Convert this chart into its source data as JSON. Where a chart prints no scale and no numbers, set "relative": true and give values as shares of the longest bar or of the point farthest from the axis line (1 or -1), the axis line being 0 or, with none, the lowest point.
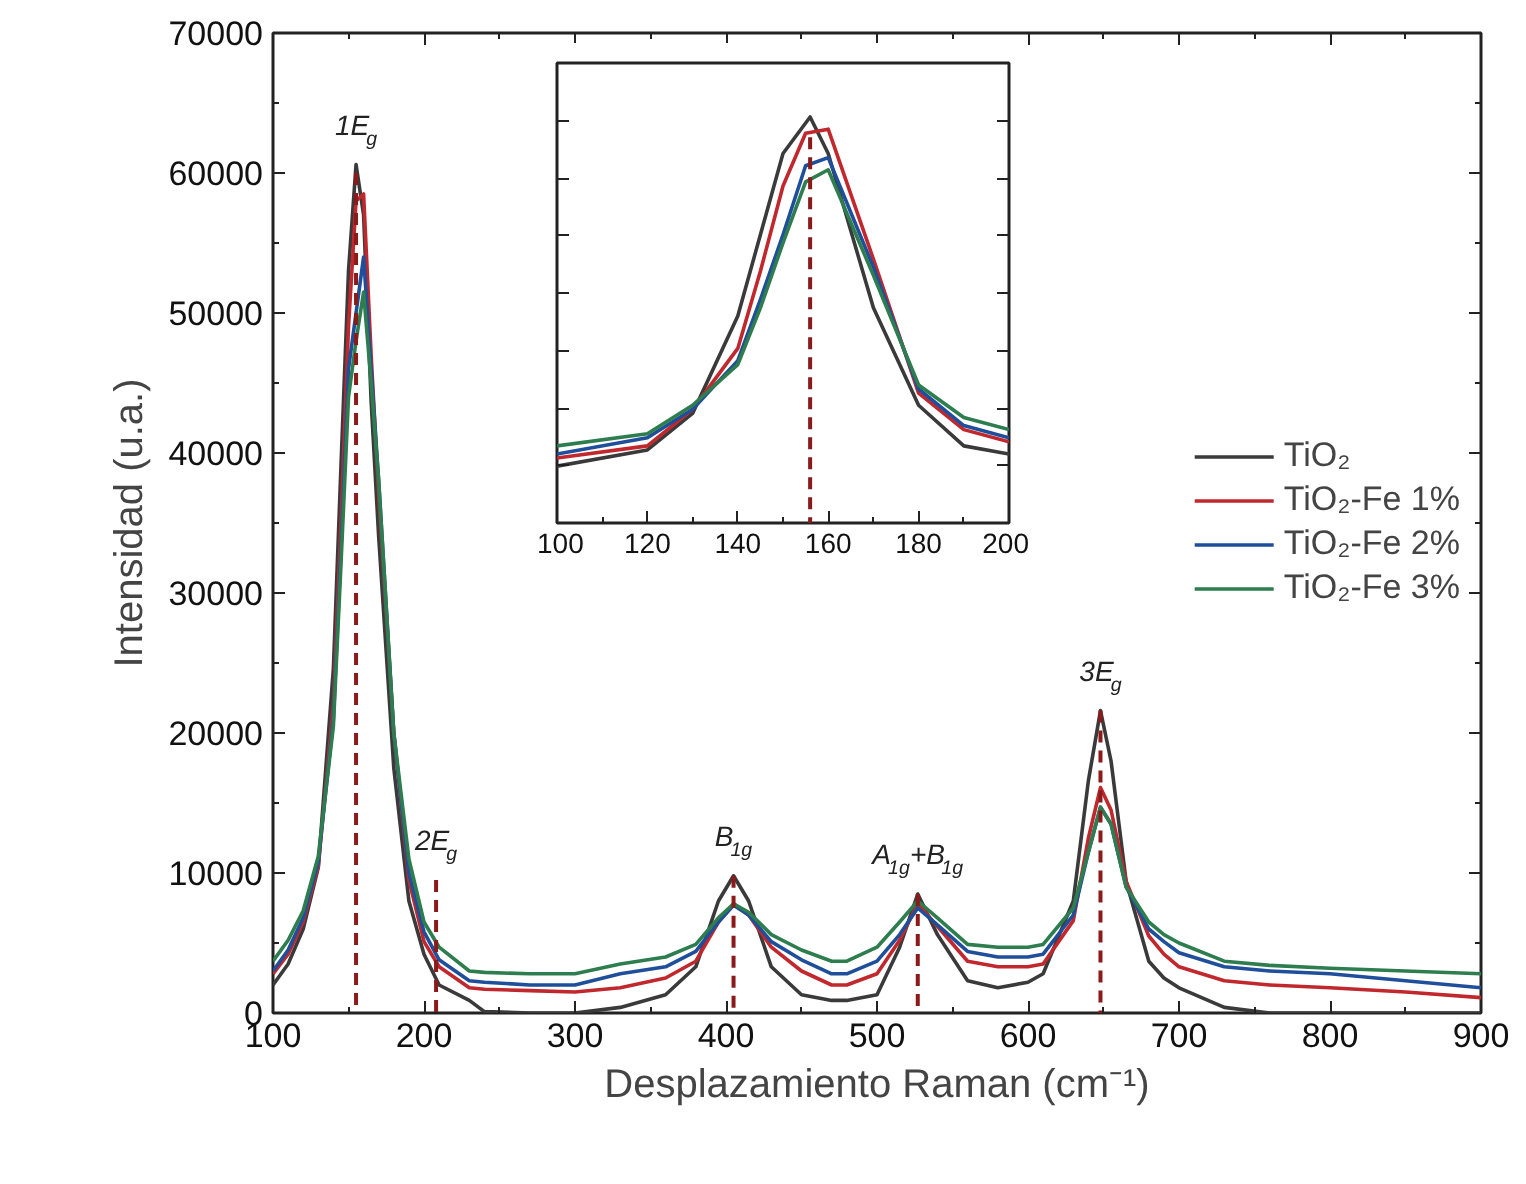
{
  "chart_data": [
    {
      "type": "line",
      "xlabel": "Desplazamiento Raman (cm⁻¹)",
      "ylabel": "Intensidad (u.a.)",
      "x": [
        100,
        110,
        120,
        130,
        140,
        145,
        150,
        155,
        160,
        165,
        170,
        180,
        190,
        200,
        210,
        230,
        240,
        270,
        300,
        330,
        360,
        380,
        395,
        405,
        415,
        430,
        450,
        470,
        480,
        500,
        515,
        527,
        540,
        560,
        580,
        600,
        610,
        630,
        640,
        648,
        655,
        665,
        680,
        690,
        700,
        730,
        760,
        800,
        850,
        900
      ],
      "xlim": [
        100,
        900
      ],
      "ylim": [
        0,
        70000
      ],
      "xticks": [
        100,
        200,
        300,
        400,
        500,
        600,
        700,
        800,
        900
      ],
      "yticks": [
        0,
        10000,
        20000,
        30000,
        40000,
        50000,
        60000,
        70000
      ],
      "grid": false,
      "legend": "right",
      "line_style": "solid",
      "series": [
        {
          "name": "TiO₂",
          "color": "#3a3a3a",
          "values": [
            2000,
            3500,
            6000,
            10400,
            24600,
            39000,
            53000,
            60600,
            57000,
            43700,
            34000,
            17500,
            8000,
            4200,
            2000,
            900,
            100,
            0,
            0,
            400,
            1300,
            3300,
            8000,
            9800,
            8000,
            3300,
            1300,
            900,
            900,
            1300,
            4700,
            8500,
            5600,
            2300,
            1800,
            2200,
            2800,
            8000,
            16600,
            21600,
            18000,
            9400,
            3700,
            2500,
            1800,
            400,
            0,
            0,
            0,
            0
          ]
        },
        {
          "name": "TiO₂-Fe 1%",
          "color": "#c0282d",
          "values": [
            2800,
            4200,
            6500,
            10500,
            22000,
            35000,
            49000,
            58000,
            58500,
            47000,
            37000,
            20000,
            9500,
            5100,
            3300,
            1800,
            1700,
            1600,
            1500,
            1800,
            2500,
            3700,
            6500,
            7800,
            7000,
            4700,
            3000,
            2000,
            2000,
            2800,
            5200,
            7800,
            6200,
            3700,
            3300,
            3300,
            3500,
            6600,
            12500,
            16100,
            14500,
            9400,
            5500,
            4200,
            3300,
            2300,
            2000,
            1800,
            1500,
            1100
          ]
        },
        {
          "name": "TiO₂-Fe 2%",
          "color": "#1f4e9a",
          "values": [
            3000,
            4500,
            6800,
            10800,
            21000,
            33000,
            46000,
            50000,
            54000,
            46000,
            38000,
            20000,
            10000,
            5800,
            3800,
            2300,
            2200,
            2000,
            2000,
            2800,
            3300,
            4400,
            6500,
            7700,
            7000,
            5100,
            3800,
            2800,
            2800,
            3700,
            5600,
            7500,
            6300,
            4400,
            4000,
            4000,
            4200,
            7000,
            11500,
            14700,
            13500,
            9000,
            6000,
            5100,
            4300,
            3300,
            3000,
            2800,
            2300,
            1800
          ]
        },
        {
          "name": "TiO₂-Fe 3%",
          "color": "#2e7d4f",
          "values": [
            3700,
            5200,
            7300,
            11200,
            20500,
            32000,
            44000,
            48000,
            51500,
            45000,
            38000,
            20000,
            11000,
            6500,
            4700,
            3000,
            2900,
            2800,
            2800,
            3500,
            4000,
            4900,
            6800,
            7800,
            7200,
            5600,
            4500,
            3700,
            3700,
            4700,
            6500,
            8000,
            6800,
            4900,
            4700,
            4700,
            4900,
            7500,
            11500,
            14700,
            13500,
            9000,
            6500,
            5600,
            5000,
            3700,
            3400,
            3200,
            3000,
            2800
          ]
        },
        {
          "type": "line",
          "line_style": "dashed",
          "color": "#8b1a1a",
          "x": [
            155,
            155
          ],
          "values": [
            60000,
            0
          ]
        },
        {
          "type": "line",
          "line_style": "dashed",
          "color": "#8b1a1a",
          "x": [
            208,
            208
          ],
          "values": [
            9500,
            0
          ]
        },
        {
          "type": "line",
          "line_style": "dashed",
          "color": "#8b1a1a",
          "x": [
            405,
            405
          ],
          "values": [
            9800,
            0
          ]
        },
        {
          "type": "line",
          "line_style": "dashed",
          "color": "#8b1a1a",
          "x": [
            527,
            527
          ],
          "values": [
            8500,
            0
          ]
        },
        {
          "type": "line",
          "line_style": "dashed",
          "color": "#8b1a1a",
          "x": [
            648,
            648
          ],
          "values": [
            21600,
            0
          ]
        }
      ],
      "annotations": [
        {
          "text": "1E$_{g}$",
          "x": 155,
          "y": 60600
        },
        {
          "text": "2E$_{g}$",
          "x": 208,
          "y": 9500
        },
        {
          "text": "B$_{1g}$",
          "x": 405,
          "y": 9800
        },
        {
          "text": "A$_{1g}$+B$_{1g}$",
          "x": 527,
          "y": 8500
        },
        {
          "text": "3E$_{g}$",
          "x": 648,
          "y": 21600
        }
      ]
    },
    {
      "type": "line",
      "relative": true,
      "tick_labels": "x",
      "x": [
        100,
        120,
        130,
        140,
        145,
        150,
        155,
        160,
        170,
        180,
        190,
        200
      ],
      "xlim": [
        100,
        200
      ],
      "xticks": [
        100,
        120,
        140,
        160,
        180,
        200
      ],
      "grid": false,
      "line_style": "solid",
      "series": [
        {
          "color": "#3a3a3a",
          "x": [
            100,
            120,
            130,
            140,
            145,
            150,
            156,
            160,
            170,
            180,
            190,
            200
          ],
          "values": [
            0.14,
            0.18,
            0.27,
            0.51,
            0.71,
            0.91,
            1.0,
            0.91,
            0.53,
            0.29,
            0.19,
            0.17
          ]
        },
        {
          "color": "#c0282d",
          "values": [
            0.16,
            0.19,
            0.28,
            0.43,
            0.62,
            0.83,
            0.96,
            0.97,
            0.65,
            0.32,
            0.23,
            0.2
          ]
        },
        {
          "color": "#1f4e9a",
          "values": [
            0.17,
            0.21,
            0.28,
            0.4,
            0.55,
            0.71,
            0.88,
            0.9,
            0.63,
            0.33,
            0.24,
            0.21
          ]
        },
        {
          "color": "#2e7d4f",
          "values": [
            0.19,
            0.22,
            0.29,
            0.39,
            0.53,
            0.69,
            0.84,
            0.87,
            0.61,
            0.34,
            0.26,
            0.23
          ]
        },
        {
          "type": "line",
          "line_style": "dashed",
          "color": "#8b1a1a",
          "x": [
            156,
            156
          ],
          "values": [
            0.95,
            0
          ]
        }
      ]
    }
  ]
}
